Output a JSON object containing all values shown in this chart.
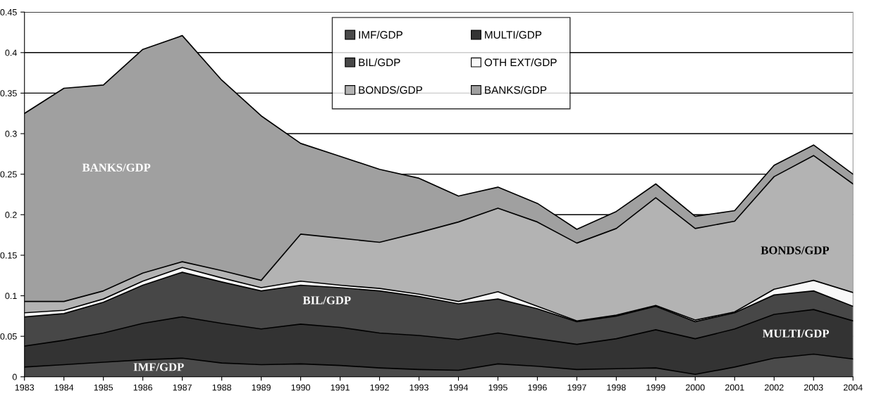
{
  "chart_data": {
    "type": "area",
    "stacked": true,
    "x": [
      1983,
      1984,
      1985,
      1986,
      1987,
      1988,
      1989,
      1990,
      1991,
      1992,
      1993,
      1994,
      1995,
      1996,
      1997,
      1998,
      1999,
      2000,
      2001,
      2002,
      2003,
      2004
    ],
    "series": [
      {
        "name": "IMF/GDP",
        "color": "#4a4a4a",
        "values": [
          0.012,
          0.015,
          0.018,
          0.021,
          0.023,
          0.017,
          0.015,
          0.016,
          0.014,
          0.011,
          0.009,
          0.008,
          0.016,
          0.013,
          0.009,
          0.01,
          0.011,
          0.003,
          0.012,
          0.023,
          0.028,
          0.022
        ]
      },
      {
        "name": "MULTI/GDP",
        "color": "#333333",
        "values": [
          0.026,
          0.03,
          0.036,
          0.045,
          0.051,
          0.049,
          0.044,
          0.049,
          0.047,
          0.043,
          0.042,
          0.038,
          0.038,
          0.034,
          0.031,
          0.037,
          0.047,
          0.044,
          0.047,
          0.054,
          0.055,
          0.047
        ]
      },
      {
        "name": "BIL/GDP",
        "color": "#474747",
        "values": [
          0.036,
          0.033,
          0.038,
          0.047,
          0.055,
          0.051,
          0.047,
          0.048,
          0.049,
          0.052,
          0.048,
          0.044,
          0.042,
          0.037,
          0.028,
          0.028,
          0.029,
          0.021,
          0.02,
          0.024,
          0.023,
          0.018
        ]
      },
      {
        "name": "OTH EXT/GDP",
        "color": "#f8f8f8",
        "values": [
          0.005,
          0.004,
          0.004,
          0.005,
          0.006,
          0.005,
          0.004,
          0.005,
          0.003,
          0.003,
          0.003,
          0.003,
          0.009,
          0.003,
          0.001,
          0.001,
          0.001,
          0.002,
          0.001,
          0.007,
          0.013,
          0.017
        ]
      },
      {
        "name": "BONDS/GDP",
        "color": "#b3b3b3",
        "values": [
          0.014,
          0.011,
          0.01,
          0.01,
          0.007,
          0.009,
          0.009,
          0.058,
          0.058,
          0.057,
          0.076,
          0.098,
          0.103,
          0.104,
          0.096,
          0.107,
          0.133,
          0.113,
          0.112,
          0.139,
          0.154,
          0.134
        ]
      },
      {
        "name": "BANKS/GDP",
        "color": "#a0a0a0",
        "values": [
          0.232,
          0.263,
          0.254,
          0.276,
          0.279,
          0.235,
          0.203,
          0.112,
          0.101,
          0.09,
          0.067,
          0.032,
          0.026,
          0.023,
          0.017,
          0.021,
          0.017,
          0.015,
          0.013,
          0.014,
          0.013,
          0.012
        ]
      }
    ],
    "xlim": [
      1983,
      2004
    ],
    "xticks": [
      1983,
      1984,
      1985,
      1986,
      1987,
      1988,
      1989,
      1990,
      1991,
      1992,
      1993,
      1994,
      1995,
      1996,
      1997,
      1998,
      1999,
      2000,
      2001,
      2002,
      2003,
      2004
    ],
    "ylim": [
      0,
      0.45
    ],
    "yticks": [
      0,
      0.05,
      0.1,
      0.15,
      0.2,
      0.25,
      0.3,
      0.35,
      0.4,
      0.45
    ],
    "grid": "y",
    "legend": "top",
    "annotations": [
      "BANKS/GDP",
      "BIL/GDP",
      "IMF/GDP",
      "BONDS/GDP",
      "MULTI/GDP"
    ]
  }
}
